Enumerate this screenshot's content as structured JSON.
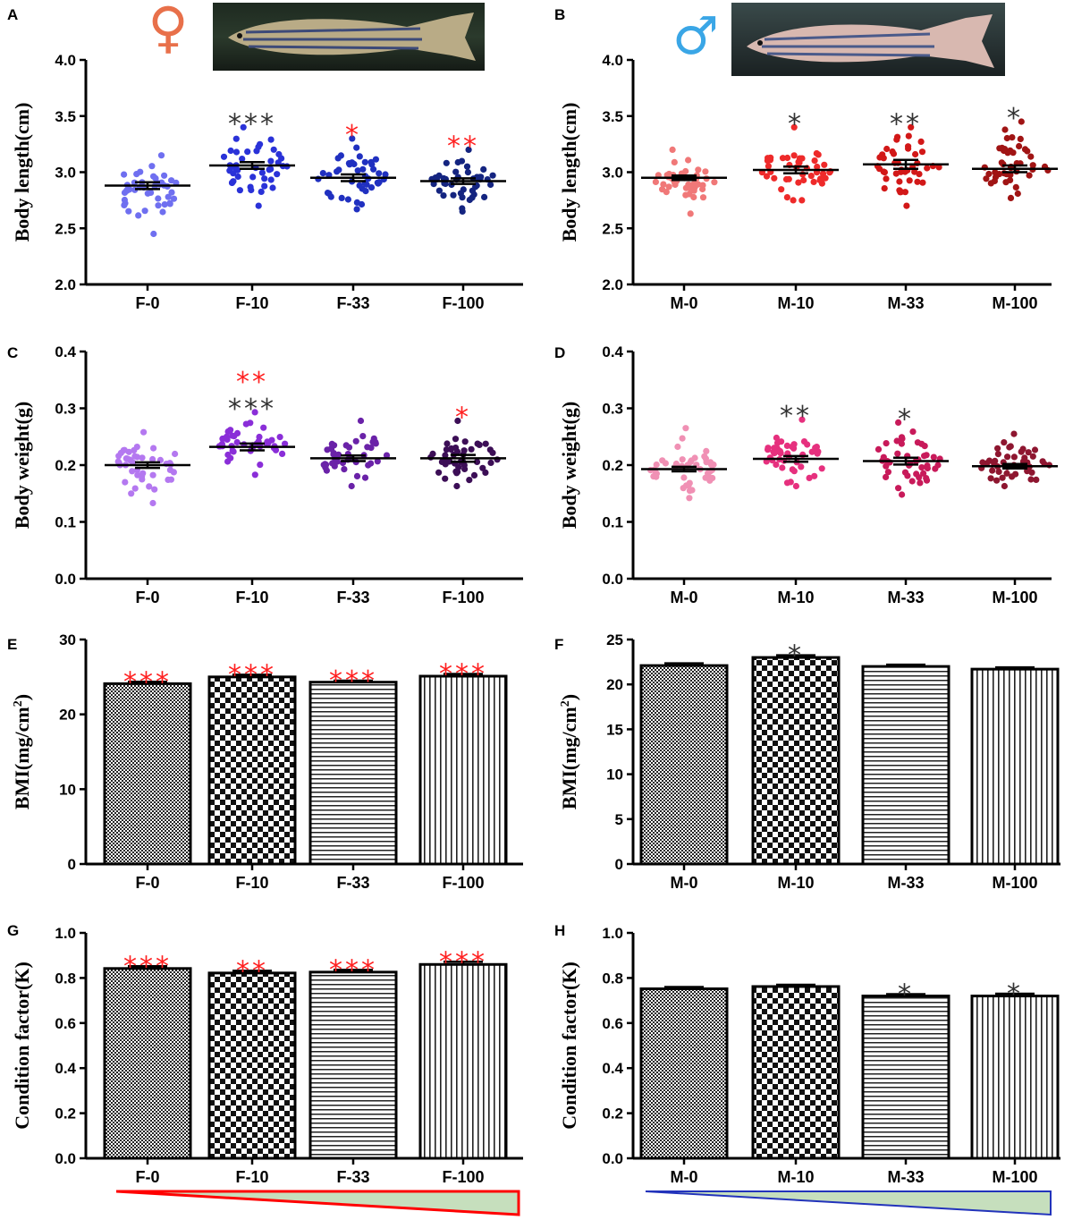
{
  "figure": {
    "female_symbol": "♀",
    "male_symbol": "♂",
    "female_image": "zebrafish-female-photo",
    "male_image": "zebrafish-male-photo"
  },
  "colors": {
    "black_star": "#333333",
    "red_star": "#ff2020",
    "female_gradient_stroke": "#ff0000",
    "male_gradient_stroke": "#2233bb",
    "gradient_fill": "#c6dfbd"
  },
  "chart_data": [
    {
      "id": "A",
      "type": "scatter",
      "ylabel": "Body length(cm)",
      "categories": [
        "F-0",
        "F-10",
        "F-33",
        "F-100"
      ],
      "ylim": [
        2.0,
        4.0
      ],
      "yticks": [
        "2.0",
        "2.5",
        "3.0",
        "3.5",
        "4.0"
      ],
      "colors": [
        "#6f6ff0",
        "#2a32d8",
        "#2030c0",
        "#142480"
      ],
      "means": [
        2.88,
        3.06,
        2.95,
        2.92
      ],
      "sem": [
        0.03,
        0.03,
        0.03,
        0.025
      ],
      "ranges": [
        [
          2.45,
          3.15
        ],
        [
          2.7,
          3.4
        ],
        [
          2.67,
          3.3
        ],
        [
          2.65,
          3.2
        ]
      ],
      "stars": [
        {
          "category": "F-10",
          "rows": [
            {
              "text": "***",
              "color": "black"
            }
          ]
        },
        {
          "category": "F-33",
          "rows": [
            {
              "text": "*",
              "color": "red"
            }
          ]
        },
        {
          "category": "F-100",
          "rows": [
            {
              "text": "**",
              "color": "red"
            }
          ]
        }
      ]
    },
    {
      "id": "B",
      "type": "scatter",
      "ylabel": "Body length(cm)",
      "categories": [
        "M-0",
        "M-10",
        "M-33",
        "M-100"
      ],
      "ylim": [
        2.0,
        4.0
      ],
      "yticks": [
        "2.0",
        "2.5",
        "3.0",
        "3.5",
        "4.0"
      ],
      "colors": [
        "#f07878",
        "#ee2a2a",
        "#d21818",
        "#a01414"
      ],
      "means": [
        2.95,
        3.02,
        3.07,
        3.03
      ],
      "sem": [
        0.02,
        0.03,
        0.04,
        0.03
      ],
      "ranges": [
        [
          2.63,
          3.2
        ],
        [
          2.75,
          3.4
        ],
        [
          2.7,
          3.4
        ],
        [
          2.77,
          3.45
        ]
      ],
      "stars": [
        {
          "category": "M-10",
          "rows": [
            {
              "text": "*",
              "color": "black"
            }
          ]
        },
        {
          "category": "M-33",
          "rows": [
            {
              "text": "**",
              "color": "black"
            }
          ]
        },
        {
          "category": "M-100",
          "rows": [
            {
              "text": "*",
              "color": "black"
            }
          ]
        }
      ]
    },
    {
      "id": "C",
      "type": "scatter",
      "ylabel": "Body weight(g)",
      "categories": [
        "F-0",
        "F-10",
        "F-33",
        "F-100"
      ],
      "ylim": [
        0.0,
        0.4
      ],
      "yticks": [
        "0.0",
        "0.1",
        "0.2",
        "0.3",
        "0.4"
      ],
      "colors": [
        "#b478f0",
        "#8a2ed8",
        "#6a22a8",
        "#3c0e56"
      ],
      "means": [
        0.2,
        0.232,
        0.212,
        0.212
      ],
      "sem": [
        0.005,
        0.006,
        0.005,
        0.006
      ],
      "ranges": [
        [
          0.133,
          0.258
        ],
        [
          0.183,
          0.293
        ],
        [
          0.163,
          0.278
        ],
        [
          0.163,
          0.278
        ]
      ],
      "stars": [
        {
          "category": "F-10",
          "rows": [
            {
              "text": "***",
              "color": "black"
            },
            {
              "text": "**",
              "color": "red"
            }
          ]
        },
        {
          "category": "F-100",
          "rows": [
            {
              "text": "*",
              "color": "red"
            }
          ]
        }
      ]
    },
    {
      "id": "D",
      "type": "scatter",
      "ylabel": "Body weight(g)",
      "categories": [
        "M-0",
        "M-10",
        "M-33",
        "M-100"
      ],
      "ylim": [
        0.0,
        0.4
      ],
      "yticks": [
        "0.0",
        "0.1",
        "0.2",
        "0.3",
        "0.4"
      ],
      "colors": [
        "#f090b4",
        "#e6307e",
        "#c81a5a",
        "#8e1630"
      ],
      "means": [
        0.193,
        0.211,
        0.207,
        0.198
      ],
      "sem": [
        0.004,
        0.005,
        0.006,
        0.004
      ],
      "ranges": [
        [
          0.142,
          0.265
        ],
        [
          0.163,
          0.28
        ],
        [
          0.148,
          0.275
        ],
        [
          0.163,
          0.255
        ]
      ],
      "stars": [
        {
          "category": "M-10",
          "rows": [
            {
              "text": "**",
              "color": "black"
            }
          ]
        },
        {
          "category": "M-33",
          "rows": [
            {
              "text": "*",
              "color": "black"
            }
          ]
        }
      ]
    },
    {
      "id": "E",
      "type": "bar",
      "ylabel": "BMI(mg/cm",
      "ylabel_sup": "2",
      "ylabel_end": ")",
      "categories": [
        "F-0",
        "F-10",
        "F-33",
        "F-100"
      ],
      "ylim": [
        0,
        30
      ],
      "yticks": [
        "0",
        "10",
        "20",
        "30"
      ],
      "values": [
        24.1,
        25.0,
        24.3,
        25.1
      ],
      "sem": [
        0.25,
        0.3,
        0.2,
        0.3
      ],
      "patterns": [
        "fine-checker",
        "checker",
        "horizontal",
        "vertical"
      ],
      "stars": [
        {
          "category": "F-0",
          "rows": [
            {
              "text": "***",
              "color": "red"
            }
          ]
        },
        {
          "category": "F-10",
          "rows": [
            {
              "text": "***",
              "color": "red"
            }
          ]
        },
        {
          "category": "F-33",
          "rows": [
            {
              "text": "***",
              "color": "red"
            }
          ]
        },
        {
          "category": "F-100",
          "rows": [
            {
              "text": "***",
              "color": "red"
            }
          ]
        }
      ]
    },
    {
      "id": "F",
      "type": "bar",
      "ylabel": "BMI(mg/cm",
      "ylabel_sup": "2",
      "ylabel_end": ")",
      "categories": [
        "M-0",
        "M-10",
        "M-33",
        "M-100"
      ],
      "ylim": [
        0,
        25
      ],
      "yticks": [
        "0",
        "5",
        "10",
        "15",
        "20",
        "25"
      ],
      "values": [
        22.1,
        23.0,
        22.0,
        21.7
      ],
      "sem": [
        0.25,
        0.25,
        0.2,
        0.2
      ],
      "patterns": [
        "fine-checker",
        "checker",
        "horizontal",
        "vertical"
      ],
      "stars": [
        {
          "category": "M-10",
          "rows": [
            {
              "text": "*",
              "color": "black"
            }
          ]
        }
      ]
    },
    {
      "id": "G",
      "type": "bar",
      "ylabel": "Condition factor(K)",
      "categories": [
        "F-0",
        "F-10",
        "F-33",
        "F-100"
      ],
      "ylim": [
        0.0,
        1.0
      ],
      "yticks": [
        "0.0",
        "0.2",
        "0.4",
        "0.6",
        "0.8",
        "1.0"
      ],
      "values": [
        0.842,
        0.822,
        0.826,
        0.86
      ],
      "sem": [
        0.01,
        0.01,
        0.01,
        0.012
      ],
      "patterns": [
        "fine-checker",
        "checker",
        "horizontal",
        "vertical"
      ],
      "stars": [
        {
          "category": "F-0",
          "rows": [
            {
              "text": "***",
              "color": "red"
            }
          ]
        },
        {
          "category": "F-10",
          "rows": [
            {
              "text": "**",
              "color": "red"
            }
          ]
        },
        {
          "category": "F-33",
          "rows": [
            {
              "text": "***",
              "color": "red"
            }
          ]
        },
        {
          "category": "F-100",
          "rows": [
            {
              "text": "***",
              "color": "red"
            }
          ]
        }
      ]
    },
    {
      "id": "H",
      "type": "bar",
      "ylabel": "Condition factor(K)",
      "categories": [
        "M-0",
        "M-10",
        "M-33",
        "M-100"
      ],
      "ylim": [
        0.0,
        1.0
      ],
      "yticks": [
        "0.0",
        "0.2",
        "0.4",
        "0.6",
        "0.8",
        "1.0"
      ],
      "values": [
        0.752,
        0.762,
        0.72,
        0.72
      ],
      "sem": [
        0.008,
        0.008,
        0.008,
        0.01
      ],
      "patterns": [
        "fine-checker",
        "checker",
        "horizontal",
        "vertical"
      ],
      "stars": [
        {
          "category": "M-33",
          "rows": [
            {
              "text": "*",
              "color": "black"
            }
          ]
        },
        {
          "category": "M-100",
          "rows": [
            {
              "text": "*",
              "color": "black"
            }
          ]
        }
      ]
    }
  ]
}
